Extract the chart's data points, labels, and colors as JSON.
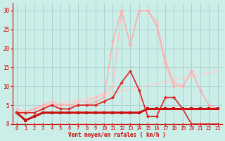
{
  "xlabel": "Vent moyen/en rafales ( km/h )",
  "bg_color": "#cceee8",
  "grid_color": "#aacccc",
  "ylim": [
    0,
    32
  ],
  "xlim": [
    -0.5,
    23.5
  ],
  "yticks": [
    0,
    5,
    10,
    15,
    20,
    25,
    30
  ],
  "x_ticks": [
    0,
    1,
    2,
    3,
    4,
    5,
    6,
    7,
    8,
    9,
    10,
    11,
    12,
    13,
    14,
    15,
    16,
    17,
    18,
    19,
    20,
    21,
    22,
    23
  ],
  "lines": [
    {
      "x": [
        0,
        1,
        2,
        3,
        4,
        5,
        6,
        7,
        8,
        9,
        10,
        11,
        12,
        13,
        14,
        15,
        16,
        17,
        18,
        19,
        20,
        21,
        22,
        23
      ],
      "y": [
        0,
        0,
        0,
        0,
        0,
        0,
        0,
        0,
        0,
        0,
        0,
        0,
        0,
        0,
        0,
        0,
        0,
        0,
        0,
        0,
        0,
        0,
        0,
        0
      ],
      "color": "#dd3333",
      "lw": 0.8,
      "marker": "s",
      "ms": 2.0,
      "zorder": 5
    },
    {
      "x": [
        0,
        1,
        2,
        3,
        4,
        5,
        6,
        7,
        8,
        9,
        10,
        11,
        12,
        13,
        14,
        15,
        16,
        17,
        18,
        19,
        20,
        21,
        22,
        23
      ],
      "y": [
        3,
        1,
        2,
        3,
        3,
        3,
        3,
        3,
        3,
        3,
        3,
        3,
        3,
        3,
        3,
        4,
        4,
        4,
        4,
        4,
        4,
        4,
        4,
        4
      ],
      "color": "#cc1111",
      "lw": 2.2,
      "marker": "s",
      "ms": 2.5,
      "zorder": 4
    },
    {
      "x": [
        0,
        1,
        2,
        3,
        4,
        5,
        6,
        7,
        8,
        9,
        10,
        11,
        12,
        13,
        14,
        15,
        16,
        17,
        18,
        19,
        20,
        21,
        22,
        23
      ],
      "y": [
        3,
        3,
        3,
        4,
        5,
        4,
        4,
        5,
        5,
        5,
        6,
        7,
        11,
        14,
        9,
        2,
        2,
        7,
        7,
        4,
        0,
        0,
        0,
        0
      ],
      "color": "#dd2222",
      "lw": 1.2,
      "marker": "D",
      "ms": 2.5,
      "zorder": 6
    },
    {
      "x": [
        0,
        1,
        2,
        3,
        4,
        5,
        6,
        7,
        8,
        9,
        10,
        11,
        12,
        13,
        14,
        15,
        16,
        17,
        18,
        19,
        20,
        21,
        22,
        23
      ],
      "y": [
        3,
        3,
        4,
        5,
        5,
        5,
        5,
        5,
        5,
        6,
        7,
        22,
        30,
        21,
        30,
        30,
        26,
        16,
        10,
        10,
        14,
        9,
        5,
        4
      ],
      "color": "#ffaaaa",
      "lw": 1.0,
      "marker": "D",
      "ms": 2.5,
      "zorder": 3
    },
    {
      "x": [
        0,
        1,
        2,
        3,
        4,
        5,
        6,
        7,
        8,
        9,
        10,
        11,
        12,
        13,
        14,
        15,
        16,
        17,
        18,
        19,
        20,
        21,
        22,
        23
      ],
      "y": [
        4,
        3,
        4,
        5,
        6,
        5,
        5,
        6,
        6,
        7,
        8,
        10,
        30,
        21,
        30,
        30,
        27,
        17,
        11,
        10,
        14,
        9,
        5,
        4
      ],
      "color": "#ffbbbb",
      "lw": 1.0,
      "marker": "D",
      "ms": 2.5,
      "zorder": 2
    },
    {
      "x": [
        0,
        23
      ],
      "y": [
        3,
        14
      ],
      "color": "#ffcccc",
      "lw": 1.0,
      "marker": null,
      "ms": 0,
      "zorder": 1
    }
  ],
  "wind_arrows": {
    "x": [
      2,
      10,
      11,
      12,
      13,
      14,
      15,
      16,
      17,
      18,
      19,
      20,
      21,
      22
    ],
    "color": "#cc2222"
  }
}
